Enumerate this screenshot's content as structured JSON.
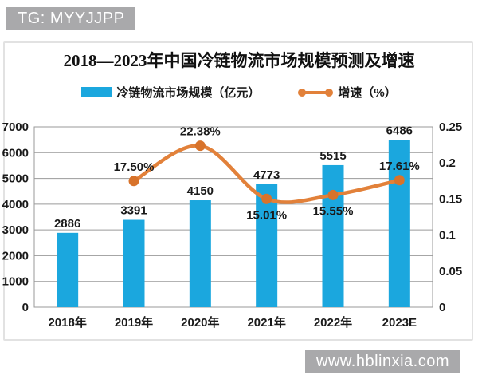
{
  "watermarks": {
    "top": "TG: MYYJJPP",
    "bottom": "www.hblinxia.com"
  },
  "colors": {
    "bar": "#1ba7de",
    "line": "#e2813a",
    "marker": "#d8732b",
    "grid": "#9a9a9a",
    "badge_bg": "#a9a9ab",
    "text": "#1a1a1a"
  },
  "chart_data": {
    "type": "bar",
    "title": "2018—2023年中国冷链物流市场规模预测及增速",
    "categories": [
      "2018年",
      "2019年",
      "2020年",
      "2021年",
      "2022年",
      "2023E"
    ],
    "series": [
      {
        "name": "冷链物流市场规模（亿元）",
        "type": "bar",
        "axis": "left",
        "values": [
          2886,
          3391,
          4150,
          4773,
          5515,
          6486
        ],
        "labels": [
          "2886",
          "3391",
          "4150",
          "4773",
          "5515",
          "6486"
        ]
      },
      {
        "name": "增速（%）",
        "type": "line",
        "axis": "right",
        "values": [
          null,
          0.175,
          0.2238,
          0.1501,
          0.1555,
          0.1761
        ],
        "labels": [
          null,
          "17.50%",
          "22.38%",
          "15.01%",
          "15.55%",
          "17.61%"
        ],
        "label_side": [
          null,
          "above",
          "above",
          "below",
          "below",
          "above"
        ]
      }
    ],
    "left_axis": {
      "min": 0,
      "max": 7000,
      "step": 1000,
      "ticks": [
        "0",
        "1000",
        "2000",
        "3000",
        "4000",
        "5000",
        "6000",
        "7000"
      ]
    },
    "right_axis": {
      "min": 0,
      "max": 0.25,
      "step": 0.05,
      "ticks": [
        "0",
        "0.05",
        "0.1",
        "0.15",
        "0.2",
        "0.25"
      ]
    },
    "legend_position": "top",
    "grid": true
  }
}
